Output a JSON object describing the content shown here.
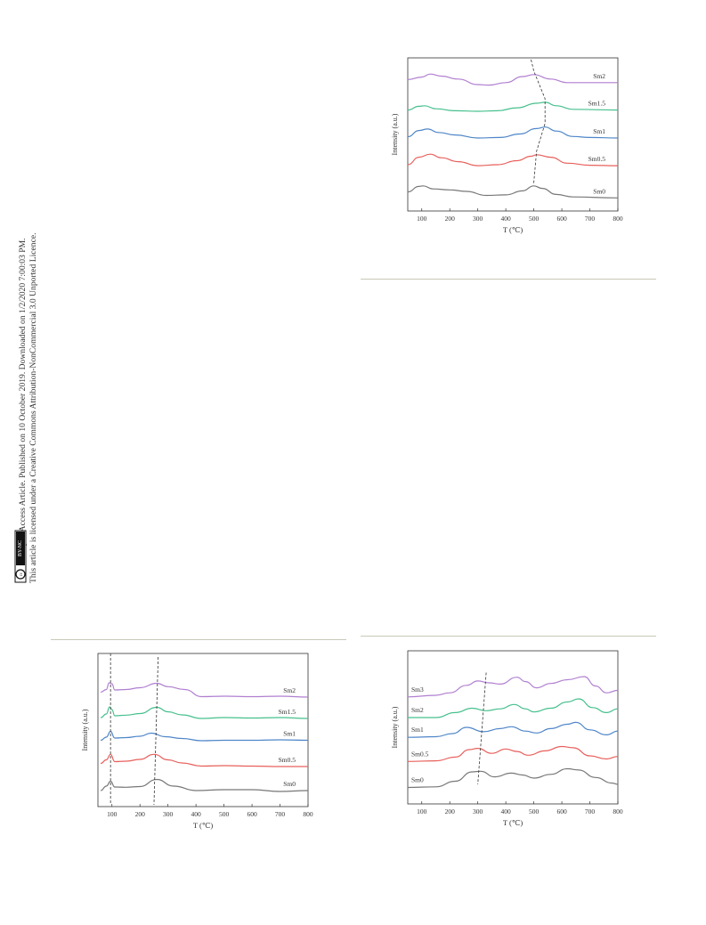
{
  "sidebar": {
    "line1": "Open Access Article. Published on 10 October 2019. Downloaded on 1/2/2020 7:00:03 PM.",
    "line2": "This article is licensed under a Creative Commons Attribution-NonCommercial 3.0 Unported Licence.",
    "badge_cc": "cc",
    "badge_text": "BY-NC"
  },
  "chart_data": [
    {
      "type": "line",
      "ylabel": "Intensity (a.u.)",
      "xlabel": "T (℃)",
      "xlim": [
        50,
        800
      ],
      "xticks": [
        100,
        200,
        300,
        400,
        500,
        600,
        700,
        800
      ],
      "grid": false,
      "series": [
        {
          "name": "Sm2",
          "color": "#b07fd0",
          "points": [
            [
              50,
              0.7
            ],
            [
              100,
              0.8
            ],
            [
              130,
              0.92
            ],
            [
              170,
              0.84
            ],
            [
              230,
              0.72
            ],
            [
              300,
              0.5
            ],
            [
              340,
              0.48
            ],
            [
              400,
              0.58
            ],
            [
              460,
              0.82
            ],
            [
              500,
              0.9
            ],
            [
              560,
              0.72
            ],
            [
              620,
              0.58
            ],
            [
              700,
              0.58
            ],
            [
              800,
              0.58
            ]
          ]
        },
        {
          "name": "Sm1.5",
          "color": "#46c08e",
          "points": [
            [
              50,
              0.55
            ],
            [
              90,
              0.7
            ],
            [
              110,
              0.72
            ],
            [
              150,
              0.6
            ],
            [
              220,
              0.52
            ],
            [
              300,
              0.5
            ],
            [
              370,
              0.52
            ],
            [
              440,
              0.64
            ],
            [
              510,
              0.82
            ],
            [
              540,
              0.86
            ],
            [
              580,
              0.72
            ],
            [
              640,
              0.58
            ],
            [
              800,
              0.55
            ]
          ]
        },
        {
          "name": "Sm1",
          "color": "#4f86c8",
          "points": [
            [
              50,
              0.55
            ],
            [
              90,
              0.8
            ],
            [
              120,
              0.86
            ],
            [
              160,
              0.72
            ],
            [
              220,
              0.62
            ],
            [
              300,
              0.5
            ],
            [
              380,
              0.52
            ],
            [
              450,
              0.66
            ],
            [
              510,
              0.88
            ],
            [
              540,
              0.94
            ],
            [
              580,
              0.78
            ],
            [
              640,
              0.56
            ],
            [
              700,
              0.52
            ],
            [
              800,
              0.5
            ]
          ]
        },
        {
          "name": "Sm0.5",
          "color": "#e7605c",
          "points": [
            [
              50,
              0.5
            ],
            [
              90,
              0.8
            ],
            [
              130,
              0.92
            ],
            [
              170,
              0.78
            ],
            [
              230,
              0.62
            ],
            [
              300,
              0.46
            ],
            [
              370,
              0.5
            ],
            [
              440,
              0.66
            ],
            [
              490,
              0.84
            ],
            [
              510,
              0.9
            ],
            [
              560,
              0.8
            ],
            [
              620,
              0.56
            ],
            [
              700,
              0.48
            ],
            [
              800,
              0.46
            ]
          ]
        },
        {
          "name": "Sm0",
          "color": "#777777",
          "points": [
            [
              50,
              0.48
            ],
            [
              90,
              0.7
            ],
            [
              105,
              0.72
            ],
            [
              140,
              0.6
            ],
            [
              200,
              0.56
            ],
            [
              260,
              0.5
            ],
            [
              330,
              0.34
            ],
            [
              400,
              0.36
            ],
            [
              460,
              0.52
            ],
            [
              500,
              0.72
            ],
            [
              530,
              0.62
            ],
            [
              580,
              0.38
            ],
            [
              640,
              0.28
            ],
            [
              800,
              0.24
            ]
          ]
        }
      ],
      "annotation": "dashed trend line through high-temperature peaks"
    },
    {
      "type": "line",
      "ylabel": "Intensity (a.u.)",
      "xlabel": "T (℃)",
      "xlim": [
        50,
        800
      ],
      "xticks": [
        100,
        200,
        300,
        400,
        500,
        600,
        700,
        800
      ],
      "grid": false,
      "series": [
        {
          "name": "Sm2",
          "color": "#b07fd0",
          "points": [
            [
              60,
              0.5
            ],
            [
              80,
              0.62
            ],
            [
              90,
              0.92
            ],
            [
              100,
              0.88
            ],
            [
              110,
              0.6
            ],
            [
              150,
              0.62
            ],
            [
              200,
              0.7
            ],
            [
              260,
              0.9
            ],
            [
              300,
              0.75
            ],
            [
              360,
              0.62
            ],
            [
              420,
              0.3
            ],
            [
              500,
              0.32
            ],
            [
              600,
              0.3
            ],
            [
              700,
              0.32
            ],
            [
              800,
              0.28
            ]
          ]
        },
        {
          "name": "Sm1.5",
          "color": "#46c08e",
          "points": [
            [
              60,
              0.44
            ],
            [
              80,
              0.6
            ],
            [
              92,
              0.92
            ],
            [
              100,
              0.8
            ],
            [
              110,
              0.52
            ],
            [
              150,
              0.55
            ],
            [
              200,
              0.62
            ],
            [
              260,
              0.9
            ],
            [
              300,
              0.7
            ],
            [
              350,
              0.56
            ],
            [
              420,
              0.4
            ],
            [
              500,
              0.44
            ],
            [
              600,
              0.42
            ],
            [
              700,
              0.44
            ],
            [
              800,
              0.4
            ]
          ]
        },
        {
          "name": "Sm1",
          "color": "#4f86c8",
          "points": [
            [
              60,
              0.5
            ],
            [
              80,
              0.64
            ],
            [
              95,
              0.9
            ],
            [
              110,
              0.6
            ],
            [
              150,
              0.62
            ],
            [
              200,
              0.68
            ],
            [
              240,
              0.82
            ],
            [
              290,
              0.66
            ],
            [
              350,
              0.58
            ],
            [
              420,
              0.48
            ],
            [
              500,
              0.5
            ],
            [
              600,
              0.5
            ],
            [
              700,
              0.52
            ],
            [
              800,
              0.5
            ]
          ]
        },
        {
          "name": "Sm0.5",
          "color": "#e7605c",
          "points": [
            [
              60,
              0.54
            ],
            [
              80,
              0.7
            ],
            [
              95,
              0.95
            ],
            [
              110,
              0.62
            ],
            [
              150,
              0.64
            ],
            [
              200,
              0.72
            ],
            [
              250,
              0.95
            ],
            [
              300,
              0.7
            ],
            [
              350,
              0.56
            ],
            [
              420,
              0.42
            ],
            [
              500,
              0.44
            ],
            [
              600,
              0.42
            ],
            [
              700,
              0.4
            ],
            [
              800,
              0.4
            ]
          ]
        },
        {
          "name": "Sm0",
          "color": "#777777",
          "points": [
            [
              60,
              0.4
            ],
            [
              80,
              0.6
            ],
            [
              95,
              0.82
            ],
            [
              110,
              0.56
            ],
            [
              150,
              0.55
            ],
            [
              200,
              0.58
            ],
            [
              260,
              0.9
            ],
            [
              320,
              0.6
            ],
            [
              400,
              0.4
            ],
            [
              500,
              0.44
            ],
            [
              600,
              0.44
            ],
            [
              700,
              0.36
            ],
            [
              800,
              0.4
            ]
          ]
        }
      ],
      "annotation": "dashed trend lines through the two peaks"
    },
    {
      "type": "line",
      "ylabel": "Intensity (a.u.)",
      "xlabel": "T (℃)",
      "xlim": [
        50,
        800
      ],
      "xticks": [
        100,
        200,
        300,
        400,
        500,
        600,
        700,
        800
      ],
      "grid": false,
      "series": [
        {
          "name": "Sm3",
          "color": "#b07fd0",
          "points": [
            [
              50,
              0.35
            ],
            [
              150,
              0.4
            ],
            [
              200,
              0.48
            ],
            [
              260,
              0.72
            ],
            [
              300,
              0.86
            ],
            [
              340,
              0.8
            ],
            [
              380,
              0.76
            ],
            [
              440,
              0.98
            ],
            [
              470,
              0.84
            ],
            [
              510,
              0.64
            ],
            [
              560,
              0.78
            ],
            [
              620,
              0.9
            ],
            [
              680,
              1.0
            ],
            [
              720,
              0.7
            ],
            [
              760,
              0.48
            ],
            [
              800,
              0.56
            ]
          ]
        },
        {
          "name": "Sm2",
          "color": "#46c08e",
          "points": [
            [
              50,
              0.4
            ],
            [
              150,
              0.4
            ],
            [
              220,
              0.56
            ],
            [
              280,
              0.7
            ],
            [
              330,
              0.62
            ],
            [
              380,
              0.68
            ],
            [
              430,
              0.82
            ],
            [
              470,
              0.68
            ],
            [
              500,
              0.58
            ],
            [
              560,
              0.7
            ],
            [
              620,
              0.9
            ],
            [
              660,
              1.0
            ],
            [
              710,
              0.72
            ],
            [
              760,
              0.56
            ],
            [
              800,
              0.68
            ]
          ]
        },
        {
          "name": "Sm1",
          "color": "#4f86c8",
          "points": [
            [
              50,
              0.48
            ],
            [
              150,
              0.5
            ],
            [
              210,
              0.6
            ],
            [
              260,
              0.8
            ],
            [
              320,
              0.66
            ],
            [
              380,
              0.76
            ],
            [
              420,
              0.82
            ],
            [
              470,
              0.68
            ],
            [
              510,
              0.62
            ],
            [
              560,
              0.76
            ],
            [
              620,
              0.9
            ],
            [
              650,
              0.96
            ],
            [
              700,
              0.72
            ],
            [
              760,
              0.56
            ],
            [
              800,
              0.68
            ]
          ]
        },
        {
          "name": "Sm0.5",
          "color": "#e7605c",
          "points": [
            [
              50,
              0.42
            ],
            [
              150,
              0.44
            ],
            [
              220,
              0.56
            ],
            [
              270,
              0.8
            ],
            [
              300,
              0.84
            ],
            [
              350,
              0.68
            ],
            [
              400,
              0.82
            ],
            [
              440,
              0.74
            ],
            [
              480,
              0.62
            ],
            [
              540,
              0.76
            ],
            [
              600,
              0.9
            ],
            [
              640,
              0.86
            ],
            [
              700,
              0.6
            ],
            [
              760,
              0.5
            ],
            [
              800,
              0.58
            ]
          ]
        },
        {
          "name": "Sm0",
          "color": "#777777",
          "points": [
            [
              50,
              0.3
            ],
            [
              150,
              0.32
            ],
            [
              220,
              0.5
            ],
            [
              280,
              0.8
            ],
            [
              310,
              0.82
            ],
            [
              360,
              0.64
            ],
            [
              420,
              0.76
            ],
            [
              460,
              0.7
            ],
            [
              500,
              0.6
            ],
            [
              560,
              0.72
            ],
            [
              620,
              0.9
            ],
            [
              660,
              0.86
            ],
            [
              720,
              0.62
            ],
            [
              780,
              0.44
            ],
            [
              800,
              0.4
            ]
          ]
        }
      ],
      "annotation": "dashed trend line through first peak"
    }
  ]
}
